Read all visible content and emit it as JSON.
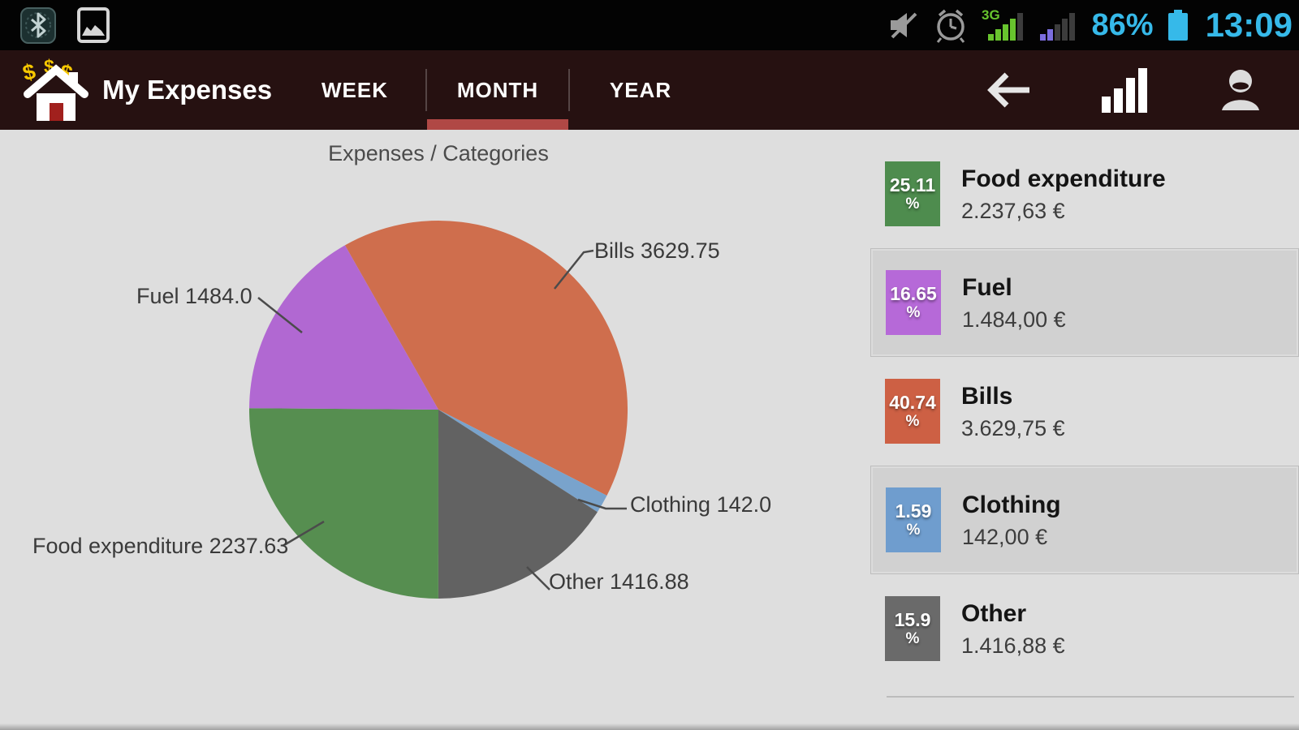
{
  "status_bar": {
    "time": "13:09",
    "battery_percent": "86%",
    "network_badge": "3G",
    "accent_color": "#36b9e9",
    "network_color": "#68c52e",
    "icon_names": [
      "bluetooth-icon",
      "gallery-icon",
      "mute-icon",
      "alarm-icon",
      "signal-3g-icon",
      "signal-secondary-icon",
      "battery-icon"
    ]
  },
  "action_bar": {
    "title": "My Expenses",
    "tabs": [
      {
        "label": "WEEK",
        "active": false
      },
      {
        "label": "MONTH",
        "active": true
      },
      {
        "label": "YEAR",
        "active": false
      }
    ],
    "active_tab_color": "#b04845",
    "icon_names": [
      "home-app-icon",
      "back-arrow-icon",
      "stats-bars-icon",
      "person-icon"
    ]
  },
  "chart": {
    "title": "Expenses / Categories",
    "labels": {
      "bills": "Bills 3629.75",
      "fuel": "Fuel 1484.0",
      "food": "Food expenditure 2237.63",
      "clothing": "Clothing 142.0",
      "other": "Other 1416.88"
    }
  },
  "chart_data": {
    "type": "pie",
    "title": "Expenses / Categories",
    "direction": "clockwise",
    "start_angle_deg": -29.6,
    "slices": [
      {
        "label": "Bills",
        "value": 3629.75,
        "pct": 40.74,
        "color": "#cf6e4d"
      },
      {
        "label": "Clothing",
        "value": 142.0,
        "pct": 1.59,
        "color": "#79a3cc"
      },
      {
        "label": "Other",
        "value": 1416.88,
        "pct": 15.9,
        "color": "#626262"
      },
      {
        "label": "Food expenditure",
        "value": 2237.63,
        "pct": 25.11,
        "color": "#568e50"
      },
      {
        "label": "Fuel",
        "value": 1484.0,
        "pct": 16.65,
        "color": "#b168d2"
      }
    ],
    "legend_position": "right"
  },
  "legend": {
    "items": [
      {
        "pct": "25.11",
        "unit": "%",
        "name": "Food expenditure",
        "amount": "2.237,63 €",
        "color": "#4e8c4e",
        "selected": false
      },
      {
        "pct": "16.65",
        "unit": "%",
        "name": "Fuel",
        "amount": "1.484,00 €",
        "color": "#b669d8",
        "selected": true
      },
      {
        "pct": "40.74",
        "unit": "%",
        "name": "Bills",
        "amount": "3.629,75 €",
        "color": "#cd6044",
        "selected": false
      },
      {
        "pct": "1.59",
        "unit": "%",
        "name": "Clothing",
        "amount": "142,00 €",
        "color": "#6f9dce",
        "selected": true
      },
      {
        "pct": "15.9",
        "unit": "%",
        "name": "Other",
        "amount": "1.416,88 €",
        "color": "#6a6a6a",
        "selected": false
      }
    ]
  }
}
